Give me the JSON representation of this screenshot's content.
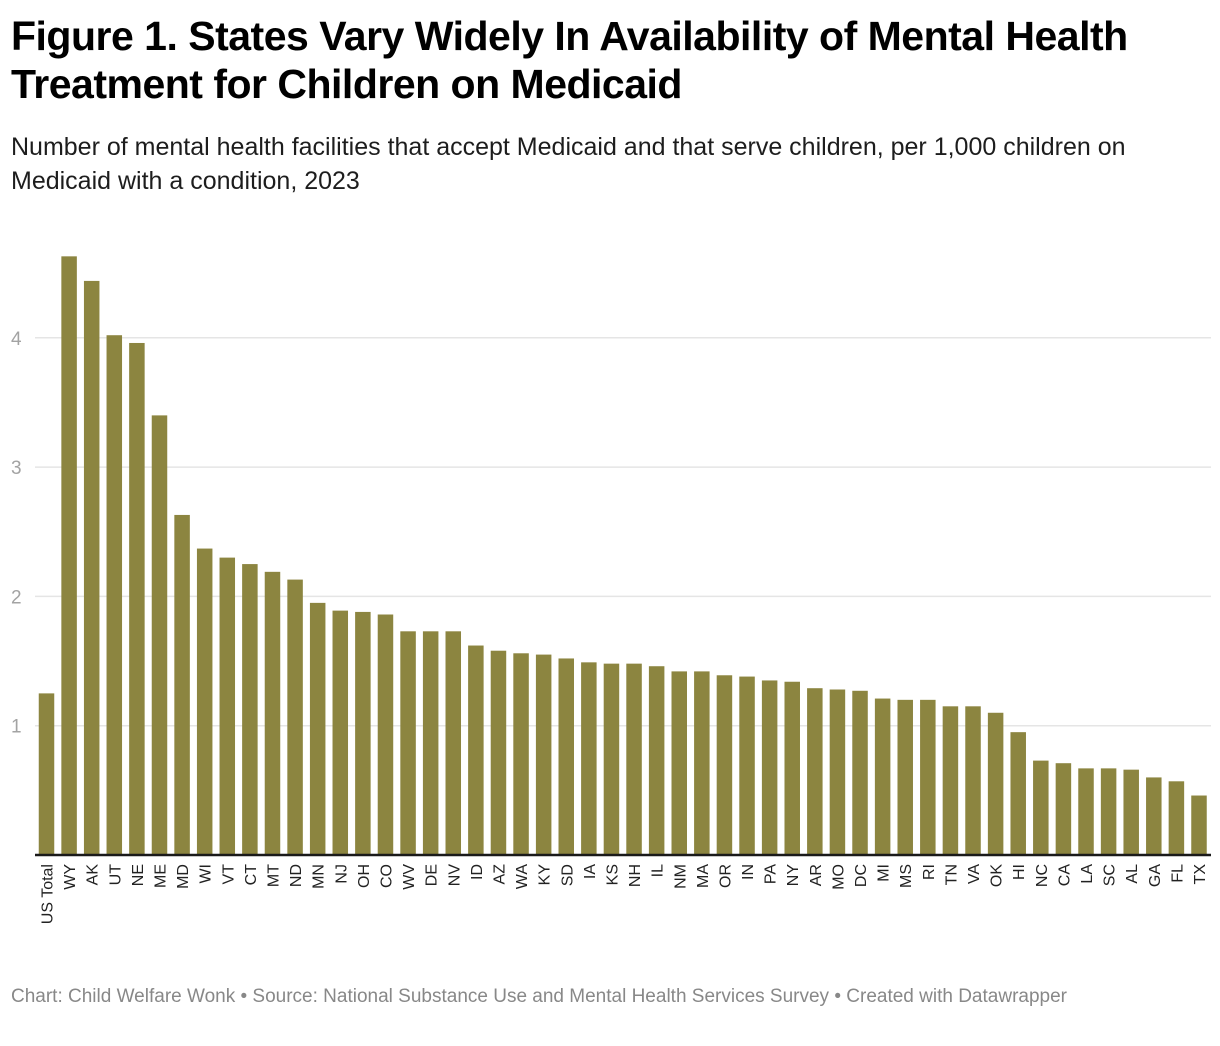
{
  "title": "Figure 1. States Vary Widely In Availability of Mental Health Treatment for Children on Medicaid",
  "subtitle": "Number of mental health facilities that accept Medicaid and that serve children, per 1,000 children on Medicaid with a condition, 2023",
  "footer": "Chart: Child Welfare Wonk • Source: National Substance Use and Mental Health Services Survey • Created with Datawrapper",
  "colors": {
    "bar": "#8c8540",
    "grid": "#e5e5e5",
    "axis": "#1a1a1a"
  },
  "chart_data": {
    "type": "bar",
    "title": "Figure 1. States Vary Widely In Availability of Mental Health Treatment for Children on Medicaid",
    "subtitle": "Number of mental health facilities that accept Medicaid and that serve children, per 1,000 children on Medicaid with a condition, 2023",
    "xlabel": "",
    "ylabel": "",
    "ylim": [
      0,
      4.63
    ],
    "yticks": [
      1,
      2,
      3,
      4
    ],
    "grid": true,
    "legend": "none",
    "categories": [
      "US Total",
      "WY",
      "AK",
      "UT",
      "NE",
      "ME",
      "MD",
      "WI",
      "VT",
      "CT",
      "MT",
      "ND",
      "MN",
      "NJ",
      "OH",
      "CO",
      "WV",
      "DE",
      "NV",
      "ID",
      "AZ",
      "WA",
      "KY",
      "SD",
      "IA",
      "KS",
      "NH",
      "IL",
      "NM",
      "MA",
      "OR",
      "IN",
      "PA",
      "NY",
      "AR",
      "MO",
      "DC",
      "MI",
      "MS",
      "RI",
      "TN",
      "VA",
      "OK",
      "HI",
      "NC",
      "CA",
      "LA",
      "SC",
      "AL",
      "GA",
      "FL",
      "TX"
    ],
    "values": [
      1.25,
      4.63,
      4.44,
      4.02,
      3.96,
      3.4,
      2.63,
      2.37,
      2.3,
      2.25,
      2.19,
      2.13,
      1.95,
      1.89,
      1.88,
      1.86,
      1.73,
      1.73,
      1.73,
      1.62,
      1.58,
      1.56,
      1.55,
      1.52,
      1.49,
      1.48,
      1.48,
      1.46,
      1.42,
      1.42,
      1.39,
      1.38,
      1.35,
      1.34,
      1.29,
      1.28,
      1.27,
      1.21,
      1.2,
      1.2,
      1.15,
      1.15,
      1.1,
      0.95,
      0.73,
      0.71,
      0.67,
      0.67,
      0.66,
      0.6,
      0.57,
      0.46
    ]
  }
}
